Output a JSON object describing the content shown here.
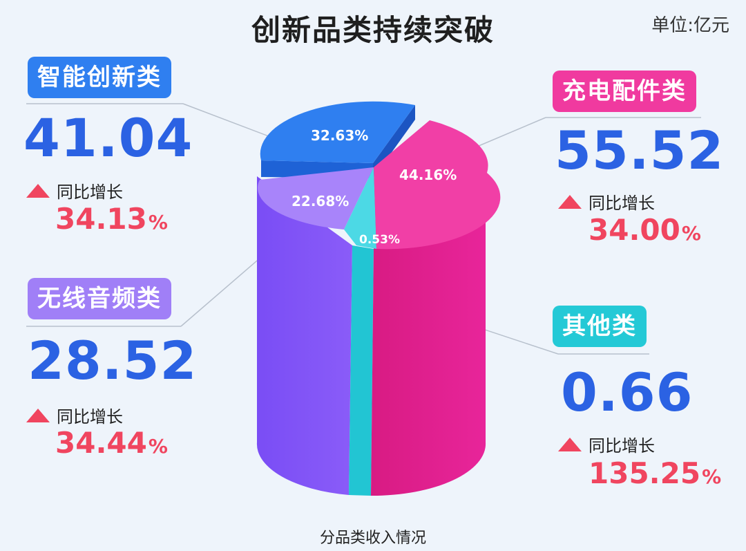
{
  "header": {
    "title": "创新品类持续突破",
    "unit": "单位:亿元"
  },
  "footer": {
    "subtitle": "分品类收入情况"
  },
  "growth_text": "同比增长",
  "pct_sign": "%",
  "colors": {
    "smart": "#2f7ff0",
    "audio": "#8152f6",
    "charging": "#e41f8f",
    "other": "#24c9d6",
    "value": "#2b62e3",
    "growth": "#f0455f"
  },
  "categories": {
    "smart": {
      "name": "智能创新类",
      "value": "41.04",
      "growth": "34.13",
      "share": "32.63%"
    },
    "audio": {
      "name": "无线音频类",
      "value": "28.52",
      "growth": "34.44",
      "share": "22.68%"
    },
    "charging": {
      "name": "充电配件类",
      "value": "55.52",
      "growth": "34.00",
      "share": "44.16%"
    },
    "other": {
      "name": "其他类",
      "value": "0.66",
      "growth": "135.25",
      "share": "0.53%"
    }
  },
  "chart_data": {
    "type": "pie",
    "title": "创新品类持续突破",
    "unit": "单位:亿元",
    "subtitle": "分品类收入情况",
    "categories": [
      "智能创新类",
      "无线音频类",
      "充电配件类",
      "其他类"
    ],
    "values": [
      41.04,
      28.52,
      55.52,
      0.66
    ],
    "shares_percent": [
      32.63,
      22.68,
      44.16,
      0.53
    ],
    "yoy_growth_percent": [
      34.13,
      34.44,
      34.0,
      135.25
    ]
  }
}
